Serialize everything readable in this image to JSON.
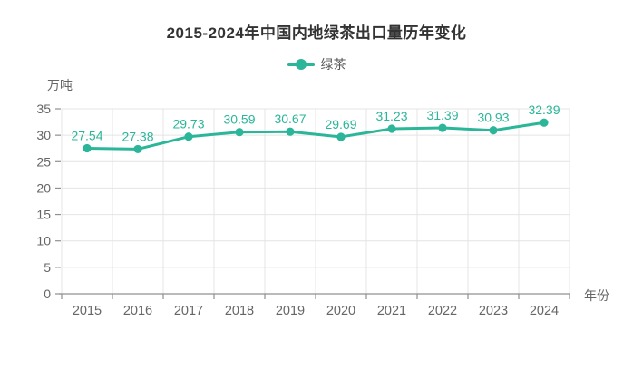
{
  "title": "2015-2024年中国内地绿茶出口量历年变化",
  "legend": {
    "items": [
      {
        "label": "绿茶",
        "color": "#2BB69A"
      }
    ]
  },
  "chart_data": {
    "type": "line",
    "categories": [
      "2015",
      "2016",
      "2017",
      "2018",
      "2019",
      "2020",
      "2021",
      "2022",
      "2023",
      "2024"
    ],
    "series": [
      {
        "name": "绿茶",
        "values": [
          27.54,
          27.38,
          29.73,
          30.59,
          30.67,
          29.69,
          31.23,
          31.39,
          30.93,
          32.39
        ],
        "color": "#2BB69A"
      }
    ],
    "title": "2015-2024年中国内地绿茶出口量历年变化",
    "xlabel": "年份",
    "ylabel": "万吨",
    "ylim": [
      0,
      35
    ],
    "ytick_step": 5,
    "yticks": [
      0,
      5,
      10,
      15,
      20,
      25,
      30,
      35
    ],
    "grid": "horizontal and vertical light gray gridlines",
    "legend_position": "top center",
    "data_labels": true
  },
  "colors": {
    "series": "#2BB69A",
    "grid_line": "#e4e4e4",
    "axis_line": "#909090",
    "tick_label": "#666666",
    "title_text": "#333333",
    "legend_text": "#555555",
    "background": "#ffffff"
  }
}
